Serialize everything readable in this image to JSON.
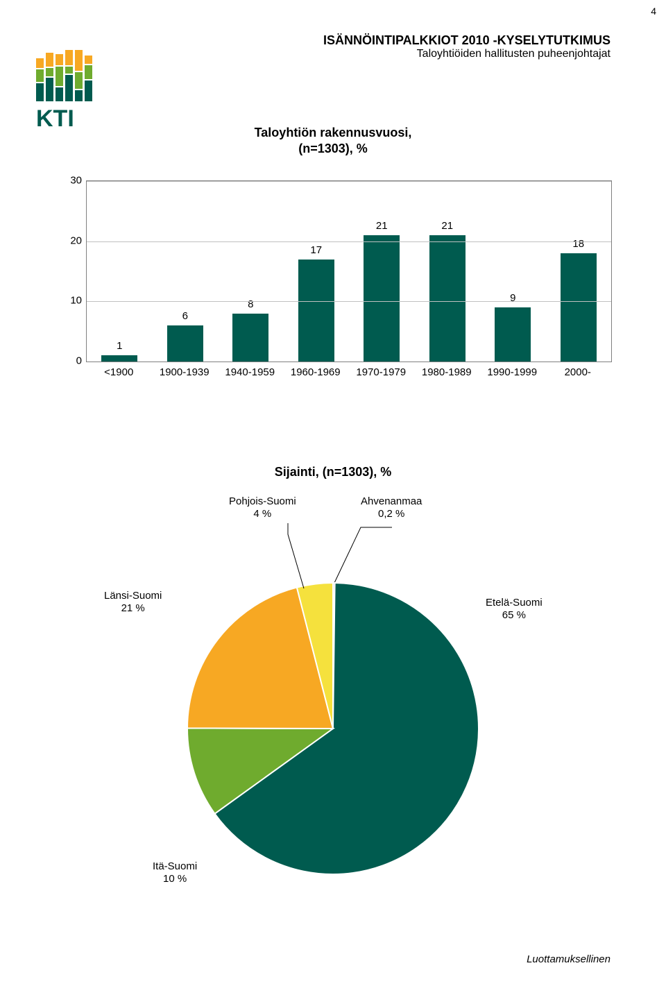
{
  "page_number": "4",
  "header": {
    "title": "ISÄNNÖINTIPALKKIOT 2010 -KYSELYTUTKIMUS",
    "subtitle": "Taloyhtiöiden hallitusten puheenjohtajat"
  },
  "logo": {
    "text": "KTI",
    "bar_colors": [
      "#005b4f",
      "#6fab2e",
      "#f7a823"
    ]
  },
  "bar_chart": {
    "title_line1": "Taloyhtiön rakennusvuosi,",
    "title_line2": "(n=1303), %",
    "ylim": [
      0,
      30
    ],
    "ytick_step": 10,
    "y_ticks": [
      0,
      10,
      20,
      30
    ],
    "categories": [
      "<1900",
      "1900-1939",
      "1940-1959",
      "1960-1969",
      "1970-1979",
      "1980-1989",
      "1990-1999",
      "2000-"
    ],
    "values": [
      1,
      6,
      8,
      17,
      21,
      21,
      9,
      18
    ],
    "bar_color": "#005b4f",
    "grid_color": "#c0c0c0",
    "border_color": "#7f7f7f",
    "label_fontsize": 15,
    "title_fontsize": 18
  },
  "pie_chart": {
    "title": "Sijainti, (n=1303), %",
    "slices": [
      {
        "label_line1": "Ahvenanmaa",
        "label_line2": "0,2 %",
        "value": 0.2,
        "color": "#3b3088"
      },
      {
        "label_line1": "Etelä-Suomi",
        "label_line2": "65 %",
        "value": 65,
        "color": "#005b4f"
      },
      {
        "label_line1": "Itä-Suomi",
        "label_line2": "10 %",
        "value": 10,
        "color": "#6fab2e"
      },
      {
        "label_line1": "Länsi-Suomi",
        "label_line2": "21 %",
        "value": 21,
        "color": "#f7a823"
      },
      {
        "label_line1": "Pohjois-Suomi",
        "label_line2": "4 %",
        "value": 4,
        "color": "#f5e13d"
      }
    ],
    "stroke_color": "#ffffff",
    "title_fontsize": 18,
    "label_fontsize": 15
  },
  "footer": "Luottamuksellinen"
}
